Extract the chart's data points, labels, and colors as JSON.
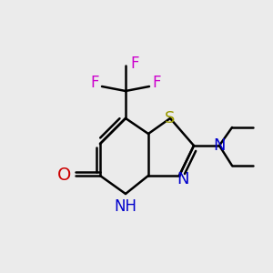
{
  "background_color": "#ebebeb",
  "figsize": [
    3.0,
    3.0
  ],
  "dpi": 100,
  "bond_lw": 1.8,
  "bond_color": "#000000",
  "atom_colors": {
    "S": "#999900",
    "N": "#0000cc",
    "O": "#cc0000",
    "F": "#cc00cc",
    "C": "#000000"
  }
}
